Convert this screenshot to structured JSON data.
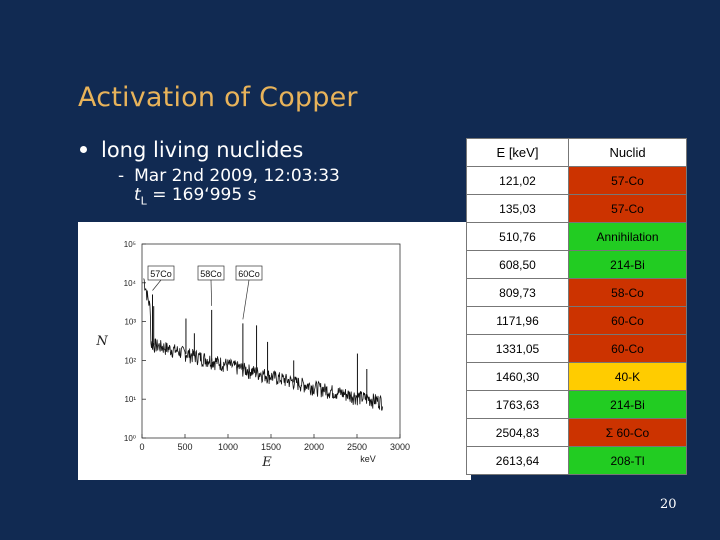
{
  "slide": {
    "title": "Activation of Copper",
    "bullet": "long living nuclides",
    "sub_line1": "Mar 2nd 2009, 12:03:33",
    "sub_line2_symbol": "t",
    "sub_line2_subscript": "L",
    "sub_line2_value": " = 169‘995 s",
    "page_number": "20"
  },
  "table": {
    "header": [
      "E [keV]",
      "Nuclid"
    ],
    "rows": [
      {
        "energy": "121,02",
        "nuclide": "57-Co",
        "color": "#cc3300"
      },
      {
        "energy": "135,03",
        "nuclide": "57-Co",
        "color": "#cc3300"
      },
      {
        "energy": "510,76",
        "nuclide": "Annihilation",
        "color": "#22cc22"
      },
      {
        "energy": "608,50",
        "nuclide": "214-Bi",
        "color": "#22cc22"
      },
      {
        "energy": "809,73",
        "nuclide": "58-Co",
        "color": "#cc3300"
      },
      {
        "energy": "1171,96",
        "nuclide": "60-Co",
        "color": "#cc3300"
      },
      {
        "energy": "1331,05",
        "nuclide": "60-Co",
        "color": "#cc3300"
      },
      {
        "energy": "1460,30",
        "nuclide": "40-K",
        "color": "#ffcc00"
      },
      {
        "energy": "1763,63",
        "nuclide": "214-Bi",
        "color": "#22cc22"
      },
      {
        "energy": "2504,83",
        "nuclide": "Σ 60-Co",
        "color": "#cc3300"
      },
      {
        "energy": "2613,64",
        "nuclide": "208-Tl",
        "color": "#22cc22"
      }
    ]
  },
  "chart_data": {
    "type": "line",
    "xlabel": "E",
    "xunit": "keV",
    "ylabel": "N",
    "xlim": [
      0,
      3000
    ],
    "ylim_log": [
      1,
      100000
    ],
    "x_ticks": [
      "0",
      "500",
      "1000",
      "1500",
      "2000",
      "2500",
      "3000"
    ],
    "y_ticks": [
      "10⁵",
      "10⁴",
      "10³",
      "10²",
      "10¹",
      "10⁰"
    ],
    "annotations": [
      "57Co",
      "58Co",
      "60Co"
    ],
    "peaks": [
      {
        "x": 122,
        "y": 5000
      },
      {
        "x": 136,
        "y": 2500
      },
      {
        "x": 511,
        "y": 1200
      },
      {
        "x": 609,
        "y": 500
      },
      {
        "x": 810,
        "y": 2000
      },
      {
        "x": 1173,
        "y": 900
      },
      {
        "x": 1332,
        "y": 800
      },
      {
        "x": 1460,
        "y": 300
      },
      {
        "x": 1764,
        "y": 100
      },
      {
        "x": 2505,
        "y": 150
      },
      {
        "x": 2614,
        "y": 60
      }
    ]
  }
}
